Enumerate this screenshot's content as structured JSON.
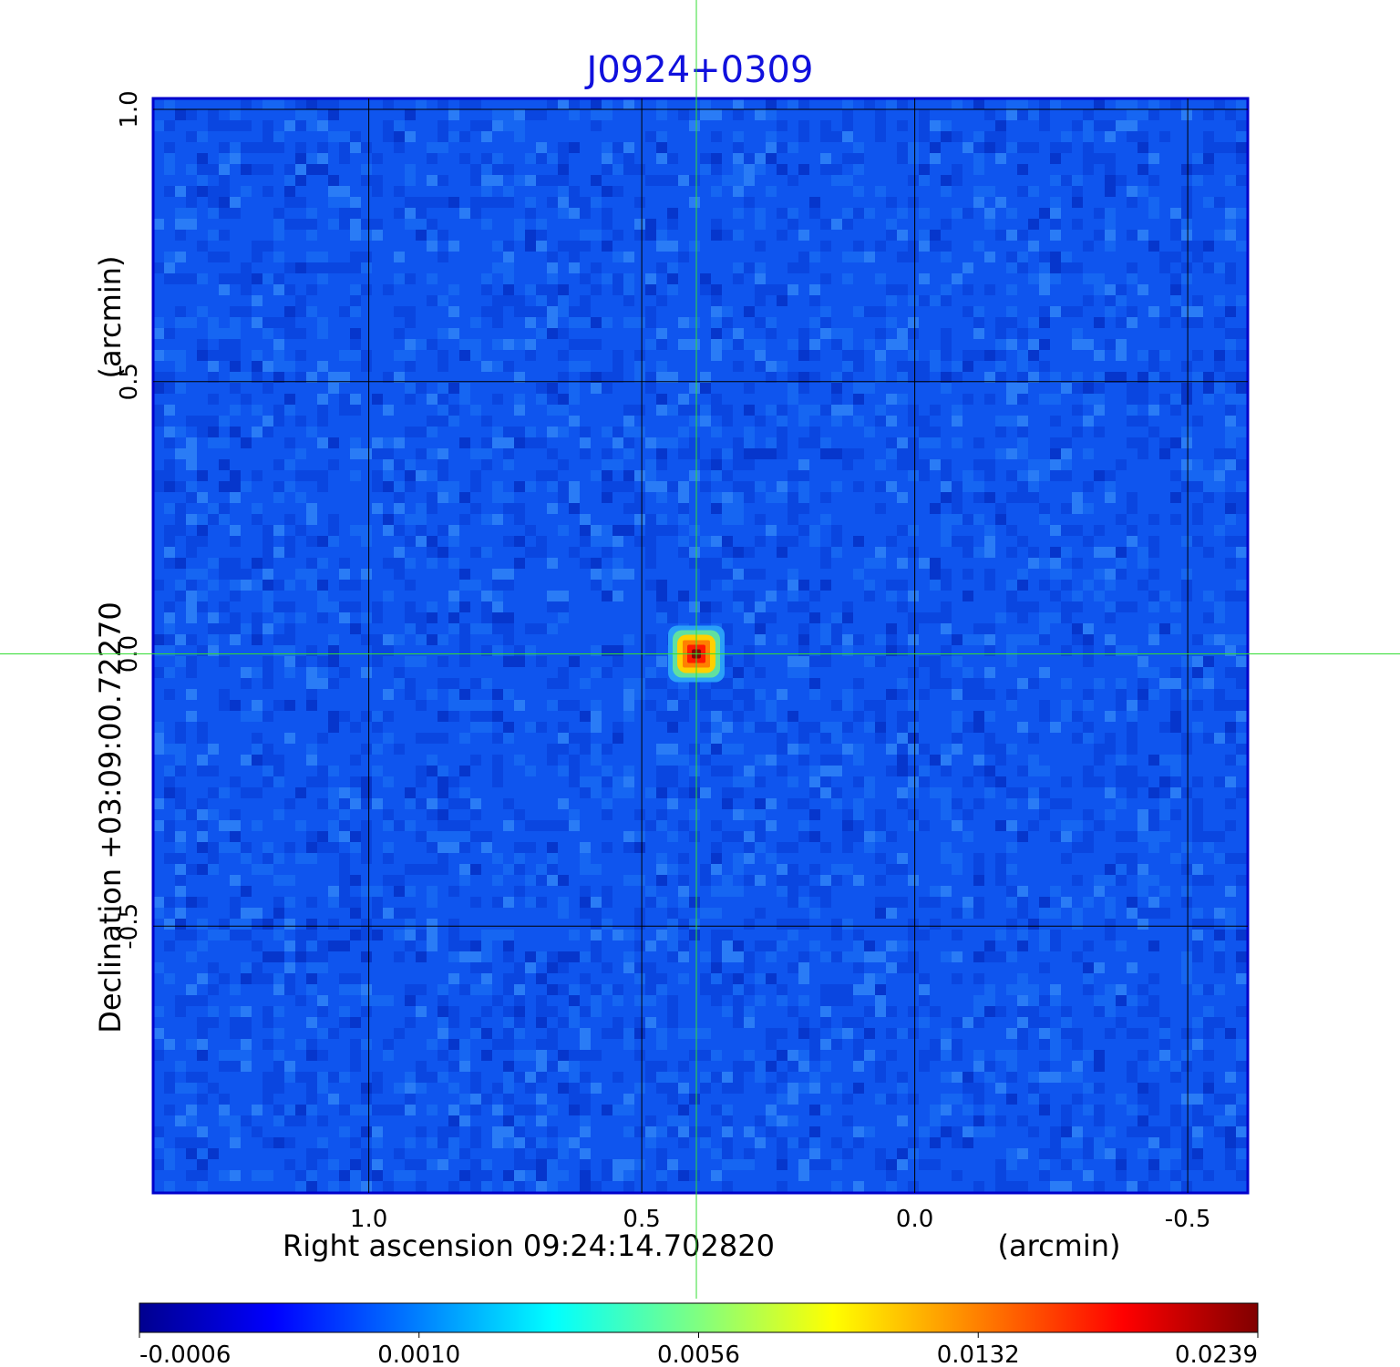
{
  "chart_data": {
    "type": "heatmap",
    "title": "J0924+0309",
    "xlabel": "Right ascension  09:24:14.702820",
    "xunit": "(arcmin)",
    "ylabel": "Declination  +03:09:00.72270",
    "yunit": "(arcmin)",
    "x_ticks": [
      "1.0",
      "0.5",
      "0.0",
      "-0.5"
    ],
    "y_ticks": [
      "1.0",
      "0.5",
      "0.0",
      "-0.5"
    ],
    "x_tick_values": [
      1.0,
      0.5,
      0.0,
      -0.5
    ],
    "y_tick_values": [
      1.0,
      0.5,
      0.0,
      -0.5
    ],
    "xlim": [
      1.395,
      -0.61
    ],
    "ylim": [
      -0.99,
      1.02
    ],
    "grid": true,
    "crosshair": {
      "x": 0.4,
      "y": 0.0,
      "color": "#33dd33"
    },
    "source": {
      "x": 0.4,
      "y": 0.0,
      "peak": 0.0239
    },
    "colorbar": {
      "ticks": [
        "-0.0006",
        "0.0010",
        "0.0056",
        "0.0132",
        "0.0239"
      ],
      "colors": [
        "#00008f",
        "#0000ff",
        "#0080ff",
        "#00ffff",
        "#80ff80",
        "#ffff00",
        "#ff8000",
        "#ff0000",
        "#800000"
      ]
    },
    "title_color": "#1010dd",
    "background_color": "#0f55ee"
  }
}
